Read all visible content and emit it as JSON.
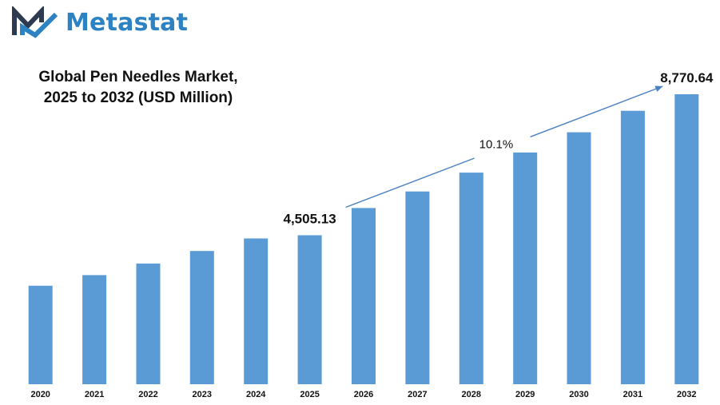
{
  "brand": {
    "name": "Metastat",
    "color": "#2d82c4"
  },
  "title_lines": [
    "Global Pen Needles Market,",
    "2025 to 2032 (USD Million)"
  ],
  "chart_data": {
    "type": "bar",
    "title": "Global Pen Needles Market, 2025 to 2032 (USD Million)",
    "categories": [
      "2020",
      "2021",
      "2022",
      "2023",
      "2024",
      "2025",
      "2026",
      "2027",
      "2028",
      "2029",
      "2030",
      "2031",
      "2032"
    ],
    "values": [
      2980,
      3300,
      3650,
      4030,
      4410,
      4505.13,
      5330,
      5830,
      6400,
      7010,
      7620,
      8270,
      8770.64
    ],
    "bar_color": "#5b9bd5",
    "ylim": [
      0,
      9500
    ],
    "grid": false,
    "legend": "none",
    "data_labels": [
      {
        "category": "2025",
        "text": "4,505.13"
      },
      {
        "category": "2032",
        "text": "8,770.64"
      }
    ],
    "annotation": {
      "text": "10.1%",
      "from": "2025",
      "to": "2032",
      "style": "arrow"
    }
  }
}
